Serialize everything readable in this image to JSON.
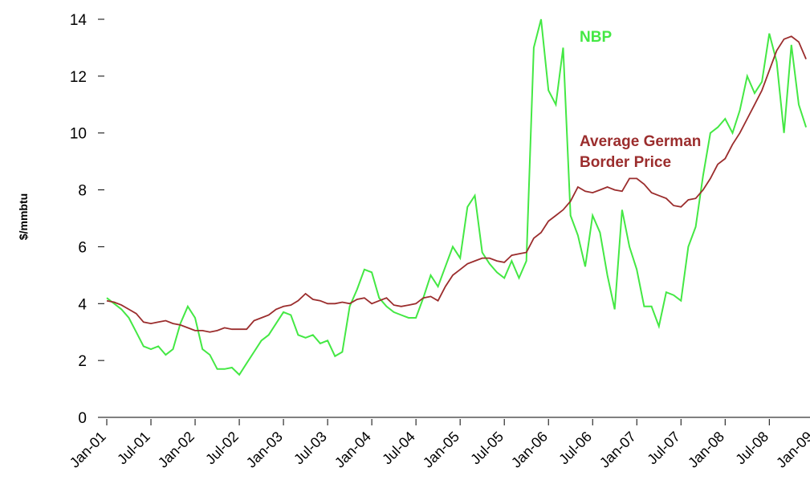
{
  "chart_data": {
    "type": "line",
    "y_label": "$/mmbtu",
    "categories": [
      "Jan-01",
      null,
      null,
      null,
      null,
      null,
      "Jul-01",
      null,
      null,
      null,
      null,
      null,
      "Jan-02",
      null,
      null,
      null,
      null,
      null,
      "Jul-02",
      null,
      null,
      null,
      null,
      null,
      "Jan-03",
      null,
      null,
      null,
      null,
      null,
      "Jul-03",
      null,
      null,
      null,
      null,
      null,
      "Jan-04",
      null,
      null,
      null,
      null,
      null,
      "Jul-04",
      null,
      null,
      null,
      null,
      null,
      "Jan-05",
      null,
      null,
      null,
      null,
      null,
      "Jul-05",
      null,
      null,
      null,
      null,
      null,
      "Jan-06",
      null,
      null,
      null,
      null,
      null,
      "Jul-06",
      null,
      null,
      null,
      null,
      null,
      "Jan-07",
      null,
      null,
      null,
      null,
      null,
      "Jul-07",
      null,
      null,
      null,
      null,
      null,
      "Jan-08",
      null,
      null,
      null,
      null,
      null,
      "Jul-08",
      null,
      null,
      null,
      null,
      null,
      "Jan-09"
    ],
    "series": [
      {
        "name": "NBP",
        "color": "#44e844",
        "values": [
          4.2,
          4.0,
          3.8,
          3.5,
          3.0,
          2.5,
          2.4,
          2.5,
          2.2,
          2.4,
          3.3,
          3.9,
          3.5,
          2.4,
          2.2,
          1.7,
          1.7,
          1.75,
          1.5,
          1.9,
          2.3,
          2.7,
          2.9,
          3.3,
          3.7,
          3.6,
          2.9,
          2.8,
          2.9,
          2.6,
          2.7,
          2.15,
          2.3,
          3.9,
          4.5,
          5.2,
          5.1,
          4.2,
          3.9,
          3.7,
          3.6,
          3.5,
          3.5,
          4.2,
          5.0,
          4.6,
          5.3,
          6.0,
          5.6,
          7.4,
          7.8,
          5.8,
          5.4,
          5.1,
          4.9,
          5.5,
          4.9,
          5.5,
          13.0,
          14.0,
          11.5,
          11.0,
          13.0,
          7.1,
          6.4,
          5.3,
          7.1,
          6.5,
          5.0,
          3.8,
          7.3,
          6.0,
          5.2,
          3.9,
          3.9,
          3.2,
          4.4,
          4.3,
          4.1,
          6.0,
          6.7,
          8.5,
          10.0,
          10.2,
          10.5,
          10.0,
          10.8,
          12.0,
          11.4,
          11.8,
          13.5,
          12.5,
          10.0,
          13.1,
          11.0,
          10.2,
          null
        ]
      },
      {
        "name": "Average German Border Price",
        "color": "#9b2d2d",
        "values": [
          4.1,
          4.05,
          3.95,
          3.8,
          3.65,
          3.35,
          3.3,
          3.35,
          3.4,
          3.3,
          3.25,
          3.15,
          3.05,
          3.05,
          3.0,
          3.05,
          3.15,
          3.1,
          3.1,
          3.1,
          3.4,
          3.5,
          3.6,
          3.8,
          3.9,
          3.95,
          4.1,
          4.35,
          4.15,
          4.1,
          4.0,
          4.0,
          4.05,
          4.0,
          4.15,
          4.2,
          4.0,
          4.1,
          4.2,
          3.95,
          3.9,
          3.95,
          4.0,
          4.2,
          4.25,
          4.1,
          4.6,
          5.0,
          5.2,
          5.4,
          5.5,
          5.6,
          5.6,
          5.5,
          5.45,
          5.7,
          5.75,
          5.8,
          6.3,
          6.5,
          6.9,
          7.1,
          7.3,
          7.6,
          8.1,
          7.95,
          7.9,
          8.0,
          8.1,
          8.0,
          7.95,
          8.4,
          8.4,
          8.2,
          7.9,
          7.8,
          7.7,
          7.45,
          7.4,
          7.65,
          7.7,
          8.0,
          8.4,
          8.9,
          9.1,
          9.6,
          10.0,
          10.5,
          11.0,
          11.5,
          12.2,
          12.9,
          13.3,
          13.4,
          13.2,
          12.6,
          null
        ]
      }
    ],
    "ylim": [
      0,
      14
    ],
    "yticks": [
      0,
      2,
      4,
      6,
      8,
      10,
      12,
      14
    ],
    "grid": false
  }
}
